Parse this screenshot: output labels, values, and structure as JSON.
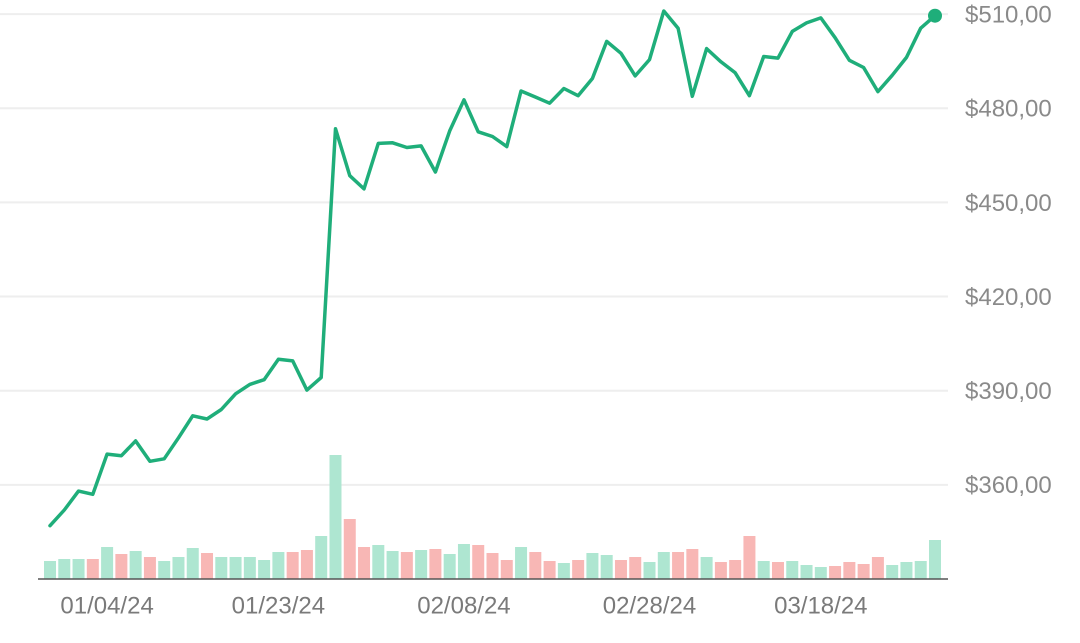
{
  "chart_data": {
    "type": "line",
    "categories": [
      null,
      null,
      null,
      null,
      "01/04/24",
      null,
      null,
      null,
      null,
      null,
      null,
      null,
      null,
      null,
      null,
      null,
      "01/23/24",
      null,
      null,
      null,
      null,
      null,
      null,
      null,
      null,
      null,
      null,
      null,
      null,
      "02/08/24",
      null,
      null,
      null,
      null,
      null,
      null,
      null,
      null,
      null,
      null,
      null,
      null,
      "02/28/24",
      null,
      null,
      null,
      null,
      null,
      null,
      null,
      null,
      null,
      null,
      null,
      "03/18/24",
      null,
      null,
      null,
      null,
      null,
      null,
      null,
      null
    ],
    "series": [
      {
        "color": "#1fae7a",
        "values": [
          347,
          352,
          358,
          357,
          369.8,
          369.3,
          374,
          367.5,
          368.3,
          375,
          382,
          381,
          384,
          389,
          392,
          393.5,
          400,
          399.5,
          390.2,
          394.2,
          473.5,
          458.5,
          454.3,
          468.8,
          469,
          467.5,
          468,
          459.7,
          472.8,
          482.7,
          472.5,
          471,
          467.8,
          485.5,
          483.6,
          481.6,
          486.3,
          484,
          489.5,
          501.3,
          497.5,
          490.3,
          495.5,
          511,
          505.5,
          483.8,
          499,
          494.8,
          491.3,
          484,
          496.5,
          496,
          504.5,
          507.2,
          508.8,
          502.5,
          495.3,
          493,
          485.3,
          490.5,
          496.2,
          505.5,
          509.5
        ]
      }
    ],
    "volume": {
      "up_color": "#aee6d1",
      "down_color": "#f8b7b5",
      "values": [
        18,
        20,
        20,
        20,
        32,
        25,
        28,
        22,
        18,
        22,
        31,
        26,
        22,
        22,
        22,
        19,
        27,
        27,
        29,
        43,
        124,
        60,
        32,
        34,
        28,
        27,
        29,
        30,
        25,
        35,
        34,
        26,
        19,
        32,
        27,
        18,
        16,
        19,
        26,
        24,
        19,
        22,
        17,
        27,
        27,
        30,
        22,
        17,
        19,
        43,
        18,
        17,
        18,
        14,
        12,
        13,
        17,
        15,
        22,
        14,
        17,
        18,
        39
      ]
    },
    "ylim": [
      330,
      514.5
    ],
    "yticks": [
      {
        "value": 510,
        "label": "$510,00"
      },
      {
        "value": 480,
        "label": "$480,00"
      },
      {
        "value": 450,
        "label": "$450,00"
      },
      {
        "value": 420,
        "label": "$420,00"
      },
      {
        "value": 390,
        "label": "$390,00"
      },
      {
        "value": 360,
        "label": "$360,00"
      }
    ],
    "grid": true
  }
}
